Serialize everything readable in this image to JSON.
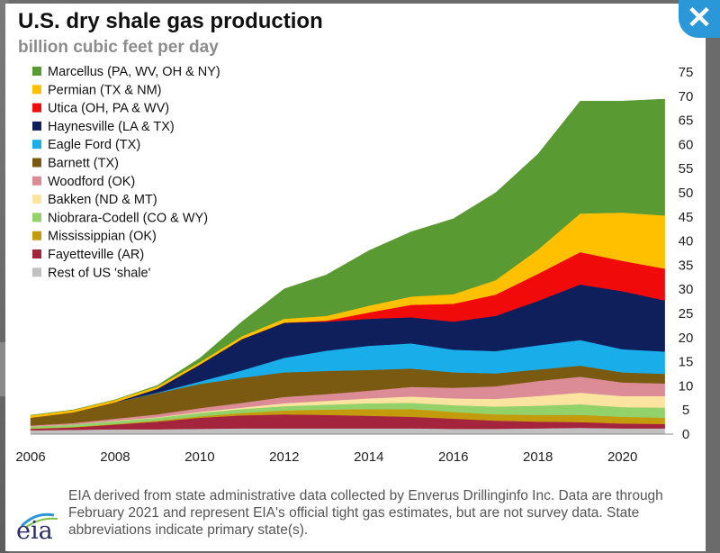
{
  "header": {
    "title": "U.S. dry shale gas production",
    "subtitle": "billion cubic feet per day",
    "close_icon": "close-icon"
  },
  "footer": {
    "note": "EIA derived from state administrative data collected by Enverus Drillinginfo Inc. Data are through February 2021 and represent EIA's official tight gas estimates, but are not survey data. State abbreviations indicate primary state(s).",
    "logo_text": "eia"
  },
  "chart_data": {
    "type": "area",
    "stacked": true,
    "title": "U.S. dry shale gas production",
    "subtitle": "billion cubic feet per day",
    "x": [
      2006,
      2007,
      2008,
      2009,
      2010,
      2011,
      2012,
      2013,
      2014,
      2015,
      2016,
      2017,
      2018,
      2019,
      2020,
      2021
    ],
    "xticks": [
      2006,
      2008,
      2010,
      2012,
      2014,
      2016,
      2018,
      2020
    ],
    "xlim": [
      2006,
      2021.2
    ],
    "yticks": [
      0,
      5,
      10,
      15,
      20,
      25,
      30,
      35,
      40,
      45,
      50,
      55,
      60,
      65,
      70,
      75
    ],
    "ylim": [
      0,
      75
    ],
    "yaxis_side": "right",
    "legend_position": "top-left",
    "series": [
      {
        "name": "Rest of US 'shale'",
        "color": "#c0c0c0",
        "values": [
          0.8,
          0.9,
          1.0,
          1.0,
          1.1,
          1.2,
          1.2,
          1.2,
          1.2,
          1.2,
          1.1,
          1.1,
          1.2,
          1.3,
          1.2,
          1.2
        ]
      },
      {
        "name": "Fayetteville (AR)",
        "color": "#a5243d",
        "values": [
          0.3,
          0.5,
          1.0,
          1.6,
          2.3,
          2.7,
          2.9,
          2.8,
          2.6,
          2.4,
          2.1,
          1.7,
          1.4,
          1.2,
          1.0,
          0.9
        ]
      },
      {
        "name": "Mississippian (OK)",
        "color": "#c59b0e",
        "values": [
          0.1,
          0.1,
          0.1,
          0.2,
          0.3,
          0.5,
          0.8,
          1.1,
          1.4,
          1.6,
          1.4,
          1.3,
          1.4,
          1.5,
          1.4,
          1.3
        ]
      },
      {
        "name": "Niobrara-Codell (CO & WY)",
        "color": "#93d26b",
        "values": [
          0.4,
          0.5,
          0.6,
          0.6,
          0.7,
          0.8,
          0.9,
          1.0,
          1.2,
          1.3,
          1.4,
          1.6,
          1.9,
          2.2,
          2.0,
          2.1
        ]
      },
      {
        "name": "Bakken (ND & MT)",
        "color": "#fbe3a0",
        "values": [
          0.0,
          0.0,
          0.1,
          0.1,
          0.2,
          0.3,
          0.6,
          0.8,
          1.0,
          1.3,
          1.4,
          1.6,
          2.0,
          2.4,
          2.3,
          2.4
        ]
      },
      {
        "name": "Woodford (OK)",
        "color": "#dc8c96",
        "values": [
          0.2,
          0.3,
          0.4,
          0.6,
          0.8,
          1.0,
          1.3,
          1.4,
          1.6,
          2.0,
          2.2,
          2.6,
          3.1,
          3.3,
          2.8,
          2.6
        ]
      },
      {
        "name": "Barnett (TX)",
        "color": "#7a5a10",
        "values": [
          1.6,
          2.2,
          3.4,
          4.4,
          5.0,
          5.2,
          5.1,
          4.8,
          4.3,
          3.8,
          3.2,
          2.7,
          2.4,
          2.3,
          2.1,
          2.0
        ]
      },
      {
        "name": "Eagle Ford (TX)",
        "color": "#19aeea",
        "values": [
          0.0,
          0.0,
          0.0,
          0.1,
          0.5,
          1.5,
          3.0,
          4.2,
          5.0,
          5.2,
          4.7,
          4.6,
          5.0,
          5.3,
          4.8,
          4.6
        ]
      },
      {
        "name": "Haynesville (LA & TX)",
        "color": "#0f1f5c",
        "values": [
          0.0,
          0.0,
          0.0,
          0.8,
          3.5,
          6.5,
          7.3,
          6.0,
          5.6,
          5.4,
          5.8,
          7.3,
          9.2,
          11.5,
          12.0,
          10.6
        ]
      },
      {
        "name": "Utica (OH, PA & WV)",
        "color": "#f00a0a",
        "values": [
          0.0,
          0.0,
          0.0,
          0.0,
          0.0,
          0.0,
          0.0,
          0.2,
          1.3,
          2.6,
          3.7,
          4.4,
          5.6,
          6.7,
          6.3,
          6.6
        ]
      },
      {
        "name": "Permian (TX & NM)",
        "color": "#ffc000",
        "values": [
          0.5,
          0.5,
          0.5,
          0.5,
          0.5,
          0.6,
          0.8,
          1.0,
          1.4,
          1.7,
          2.0,
          3.0,
          5.0,
          8.0,
          10.0,
          11.0
        ]
      },
      {
        "name": "Marcellus (PA, WV, OH & NY)",
        "color": "#5a9a32",
        "values": [
          0.0,
          0.0,
          0.0,
          0.2,
          0.8,
          3.0,
          6.2,
          8.5,
          11.4,
          13.4,
          15.6,
          18.1,
          19.8,
          23.3,
          23.1,
          24.1
        ]
      }
    ]
  }
}
